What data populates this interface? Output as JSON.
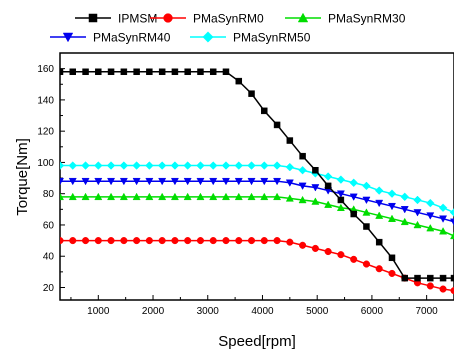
{
  "chart_data": {
    "type": "line",
    "title": "",
    "xlabel": "Speed[rpm]",
    "ylabel": "Torque[Nm]",
    "xlim": [
      300,
      7500
    ],
    "ylim": [
      12,
      170
    ],
    "xticks": [
      1000,
      2000,
      3000,
      4000,
      5000,
      6000,
      7000
    ],
    "yticks": [
      20,
      40,
      60,
      80,
      100,
      120,
      140,
      160
    ],
    "x": [
      300,
      533,
      767,
      1000,
      1233,
      1467,
      1700,
      1933,
      2167,
      2400,
      2633,
      2867,
      3100,
      3333,
      3567,
      3800,
      4033,
      4267,
      4500,
      4733,
      4967,
      5200,
      5433,
      5667,
      5900,
      6133,
      6367,
      6600,
      6833,
      7067,
      7300,
      7500
    ],
    "grid": false,
    "legend_position": "top",
    "series": [
      {
        "name": "IPMSM",
        "color": "#000000",
        "marker": "square",
        "values": [
          158,
          158,
          158,
          158,
          158,
          158,
          158,
          158,
          158,
          158,
          158,
          158,
          158,
          158,
          152,
          144,
          133,
          124,
          114,
          104,
          95,
          85,
          76,
          67,
          59,
          49,
          39,
          26,
          26,
          26,
          26,
          26
        ]
      },
      {
        "name": "PMaSynRM0",
        "color": "#ff0000",
        "marker": "circle",
        "values": [
          50,
          50,
          50,
          50,
          50,
          50,
          50,
          50,
          50,
          50,
          50,
          50,
          50,
          50,
          50,
          50,
          50,
          50,
          49,
          47,
          45,
          43,
          41,
          38,
          35,
          32,
          29,
          26,
          23,
          21,
          19,
          18
        ]
      },
      {
        "name": "PMaSynRM30",
        "color": "#00dd00",
        "marker": "triangle-up",
        "values": [
          78,
          78,
          78,
          78,
          78,
          78,
          78,
          78,
          78,
          78,
          78,
          78,
          78,
          78,
          78,
          78,
          78,
          78,
          77,
          76,
          75,
          73,
          71,
          70,
          68,
          66,
          64,
          62,
          60,
          58,
          56,
          53
        ]
      },
      {
        "name": "PMaSynRM40",
        "color": "#0000ee",
        "marker": "triangle-down",
        "values": [
          88,
          88,
          88,
          88,
          88,
          88,
          88,
          88,
          88,
          88,
          88,
          88,
          88,
          88,
          88,
          88,
          88,
          88,
          87,
          85,
          84,
          82,
          80,
          78,
          76,
          74,
          72,
          70,
          68,
          66,
          64,
          62
        ]
      },
      {
        "name": "PMaSynRM50",
        "color": "#00ffff",
        "marker": "diamond",
        "values": [
          98,
          98,
          98,
          98,
          98,
          98,
          98,
          98,
          98,
          98,
          98,
          98,
          98,
          98,
          98,
          98,
          98,
          98,
          97,
          95,
          93,
          91,
          89,
          87,
          85,
          82,
          80,
          78,
          76,
          74,
          71,
          68
        ]
      }
    ]
  }
}
